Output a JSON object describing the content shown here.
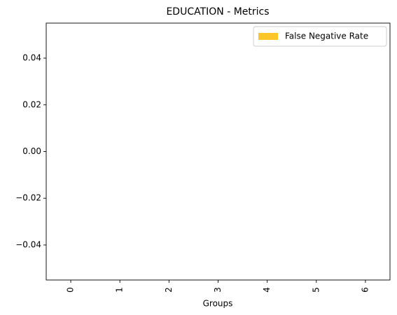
{
  "chart_data": {
    "type": "bar",
    "title": "EDUCATION - Metrics",
    "x_label": "Groups",
    "categories": [
      "0",
      "1",
      "2",
      "3",
      "4",
      "5",
      "6"
    ],
    "series": [
      {
        "name": "False Negative Rate",
        "color": "#fbc728",
        "values": [
          0,
          0,
          0,
          0,
          0,
          0,
          0
        ]
      }
    ],
    "ylim": [
      -0.055,
      0.055
    ],
    "yticks": [
      {
        "value": -0.04,
        "label": "−0.04"
      },
      {
        "value": -0.02,
        "label": "−0.02"
      },
      {
        "value": 0,
        "label": "0.00"
      },
      0.02,
      0.04
    ],
    "grid": false,
    "legend": "upper right"
  }
}
